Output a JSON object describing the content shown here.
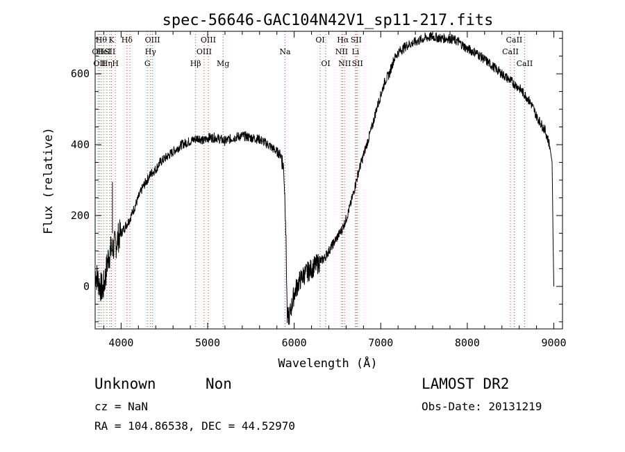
{
  "chart_data": {
    "type": "line",
    "title": "spec-56646-GAC104N42V1_sp11-217.fits",
    "xlabel": "Wavelength (Å)",
    "ylabel": "Flux (relative)",
    "xlim": [
      3700,
      9100
    ],
    "ylim": [
      -120,
      720
    ],
    "x_ticks": [
      4000,
      5000,
      6000,
      7000,
      8000,
      9000
    ],
    "x_tick_labels": [
      "4000",
      "5000",
      "6000",
      "7000",
      "8000",
      "9000"
    ],
    "y_ticks": [
      0,
      200,
      400,
      600
    ],
    "y_tick_labels": [
      "0",
      "200",
      "400",
      "600"
    ],
    "series": [
      {
        "name": "spectrum",
        "x": [
          3700,
          3730,
          3760,
          3790,
          3820,
          3850,
          3880,
          3910,
          3940,
          3970,
          4000,
          4050,
          4100,
          4150,
          4200,
          4250,
          4300,
          4350,
          4400,
          4450,
          4500,
          4550,
          4600,
          4650,
          4700,
          4750,
          4800,
          4850,
          4900,
          4950,
          5000,
          5100,
          5200,
          5300,
          5400,
          5500,
          5600,
          5700,
          5750,
          5800,
          5850,
          5880,
          5900,
          5920,
          5950,
          6000,
          6050,
          6100,
          6150,
          6200,
          6250,
          6300,
          6350,
          6400,
          6450,
          6500,
          6550,
          6600,
          6650,
          6700,
          6750,
          6800,
          6850,
          6900,
          6950,
          7000,
          7050,
          7100,
          7150,
          7200,
          7300,
          7400,
          7500,
          7600,
          7700,
          7800,
          7900,
          8000,
          8100,
          8200,
          8300,
          8400,
          8500,
          8600,
          8700,
          8750,
          8800,
          8850,
          8900,
          8950,
          8980,
          8990,
          9000
        ],
        "y": [
          40,
          20,
          0,
          -10,
          30,
          80,
          100,
          110,
          120,
          140,
          150,
          170,
          190,
          220,
          250,
          280,
          300,
          320,
          330,
          350,
          360,
          370,
          380,
          390,
          400,
          405,
          410,
          415,
          420,
          410,
          420,
          420,
          410,
          420,
          425,
          420,
          415,
          400,
          390,
          380,
          370,
          330,
          200,
          -90,
          -80,
          -20,
          10,
          30,
          40,
          50,
          60,
          70,
          80,
          100,
          120,
          140,
          160,
          190,
          230,
          280,
          330,
          370,
          410,
          450,
          500,
          540,
          580,
          600,
          640,
          660,
          680,
          690,
          700,
          705,
          700,
          700,
          690,
          670,
          660,
          640,
          620,
          600,
          580,
          560,
          530,
          510,
          480,
          460,
          440,
          400,
          350,
          150,
          0
        ]
      }
    ],
    "spike": {
      "x": 3900,
      "y": 295
    },
    "lines": [
      {
        "x": 3734,
        "label": "OII",
        "row": 2,
        "dash": "dot"
      },
      {
        "x": 3750,
        "label": "OII",
        "row": 3,
        "dash": "dot"
      },
      {
        "x": 3771,
        "label": "Hθ",
        "row": 1,
        "dash": "dot"
      },
      {
        "x": 3798,
        "label": "HeI",
        "row": 2,
        "dash": "dot"
      },
      {
        "x": 3835,
        "label": "Hη",
        "row": 3,
        "dash": "dot"
      },
      {
        "x": 3869,
        "label": "SII",
        "row": 2,
        "dash": "dot"
      },
      {
        "x": 3889,
        "label": "K",
        "row": 1,
        "dash": "dot"
      },
      {
        "x": 3934,
        "label": "H",
        "row": 3,
        "dash": "dot"
      },
      {
        "x": 4068,
        "label": "Hδ",
        "row": 1,
        "dash": "dot"
      },
      {
        "x": 4102,
        "label": "",
        "row": 0,
        "dash": "dot"
      },
      {
        "x": 4304,
        "label": "G",
        "row": 3,
        "dash": "dot"
      },
      {
        "x": 4340,
        "label": "Hγ",
        "row": 2,
        "dash": "dot"
      },
      {
        "x": 4363,
        "label": "OIII",
        "row": 1,
        "dash": "dot"
      },
      {
        "x": 4861,
        "label": "Hβ",
        "row": 3,
        "dash": "dot"
      },
      {
        "x": 4959,
        "label": "OIII",
        "row": 2,
        "dash": "dot"
      },
      {
        "x": 5007,
        "label": "OIII",
        "row": 1,
        "dash": "dot"
      },
      {
        "x": 5178,
        "label": "Mg",
        "row": 3,
        "dash": "dot"
      },
      {
        "x": 5894,
        "label": "Na",
        "row": 2,
        "dash": "dot"
      },
      {
        "x": 6300,
        "label": "OI",
        "row": 1,
        "dash": "dot"
      },
      {
        "x": 6364,
        "label": "OI",
        "row": 3,
        "dash": "dot"
      },
      {
        "x": 6548,
        "label": "NII",
        "row": 2,
        "dash": "dot"
      },
      {
        "x": 6563,
        "label": "Hα",
        "row": 1,
        "dash": "dot"
      },
      {
        "x": 6583,
        "label": "NII",
        "row": 3,
        "dash": "dot"
      },
      {
        "x": 6708,
        "label": "Li",
        "row": 2,
        "dash": "dot"
      },
      {
        "x": 6716,
        "label": "SII",
        "row": 1,
        "dash": "dot"
      },
      {
        "x": 6731,
        "label": "SII",
        "row": 3,
        "dash": "dot"
      },
      {
        "x": 8498,
        "label": "CaII",
        "row": 2,
        "dash": "dot"
      },
      {
        "x": 8542,
        "label": "CaII",
        "row": 1,
        "dash": "dot"
      },
      {
        "x": 8662,
        "label": "CaII",
        "row": 3,
        "dash": "dot"
      }
    ],
    "line_color": "#cc3333"
  },
  "info": {
    "class_label": "Unknown",
    "subclass_label": "Non",
    "survey": "LAMOST DR2",
    "cz": "cz = NaN",
    "obs_date": "Obs-Date: 20131219",
    "coords": "RA = 104.86538, DEC =  44.52970"
  }
}
